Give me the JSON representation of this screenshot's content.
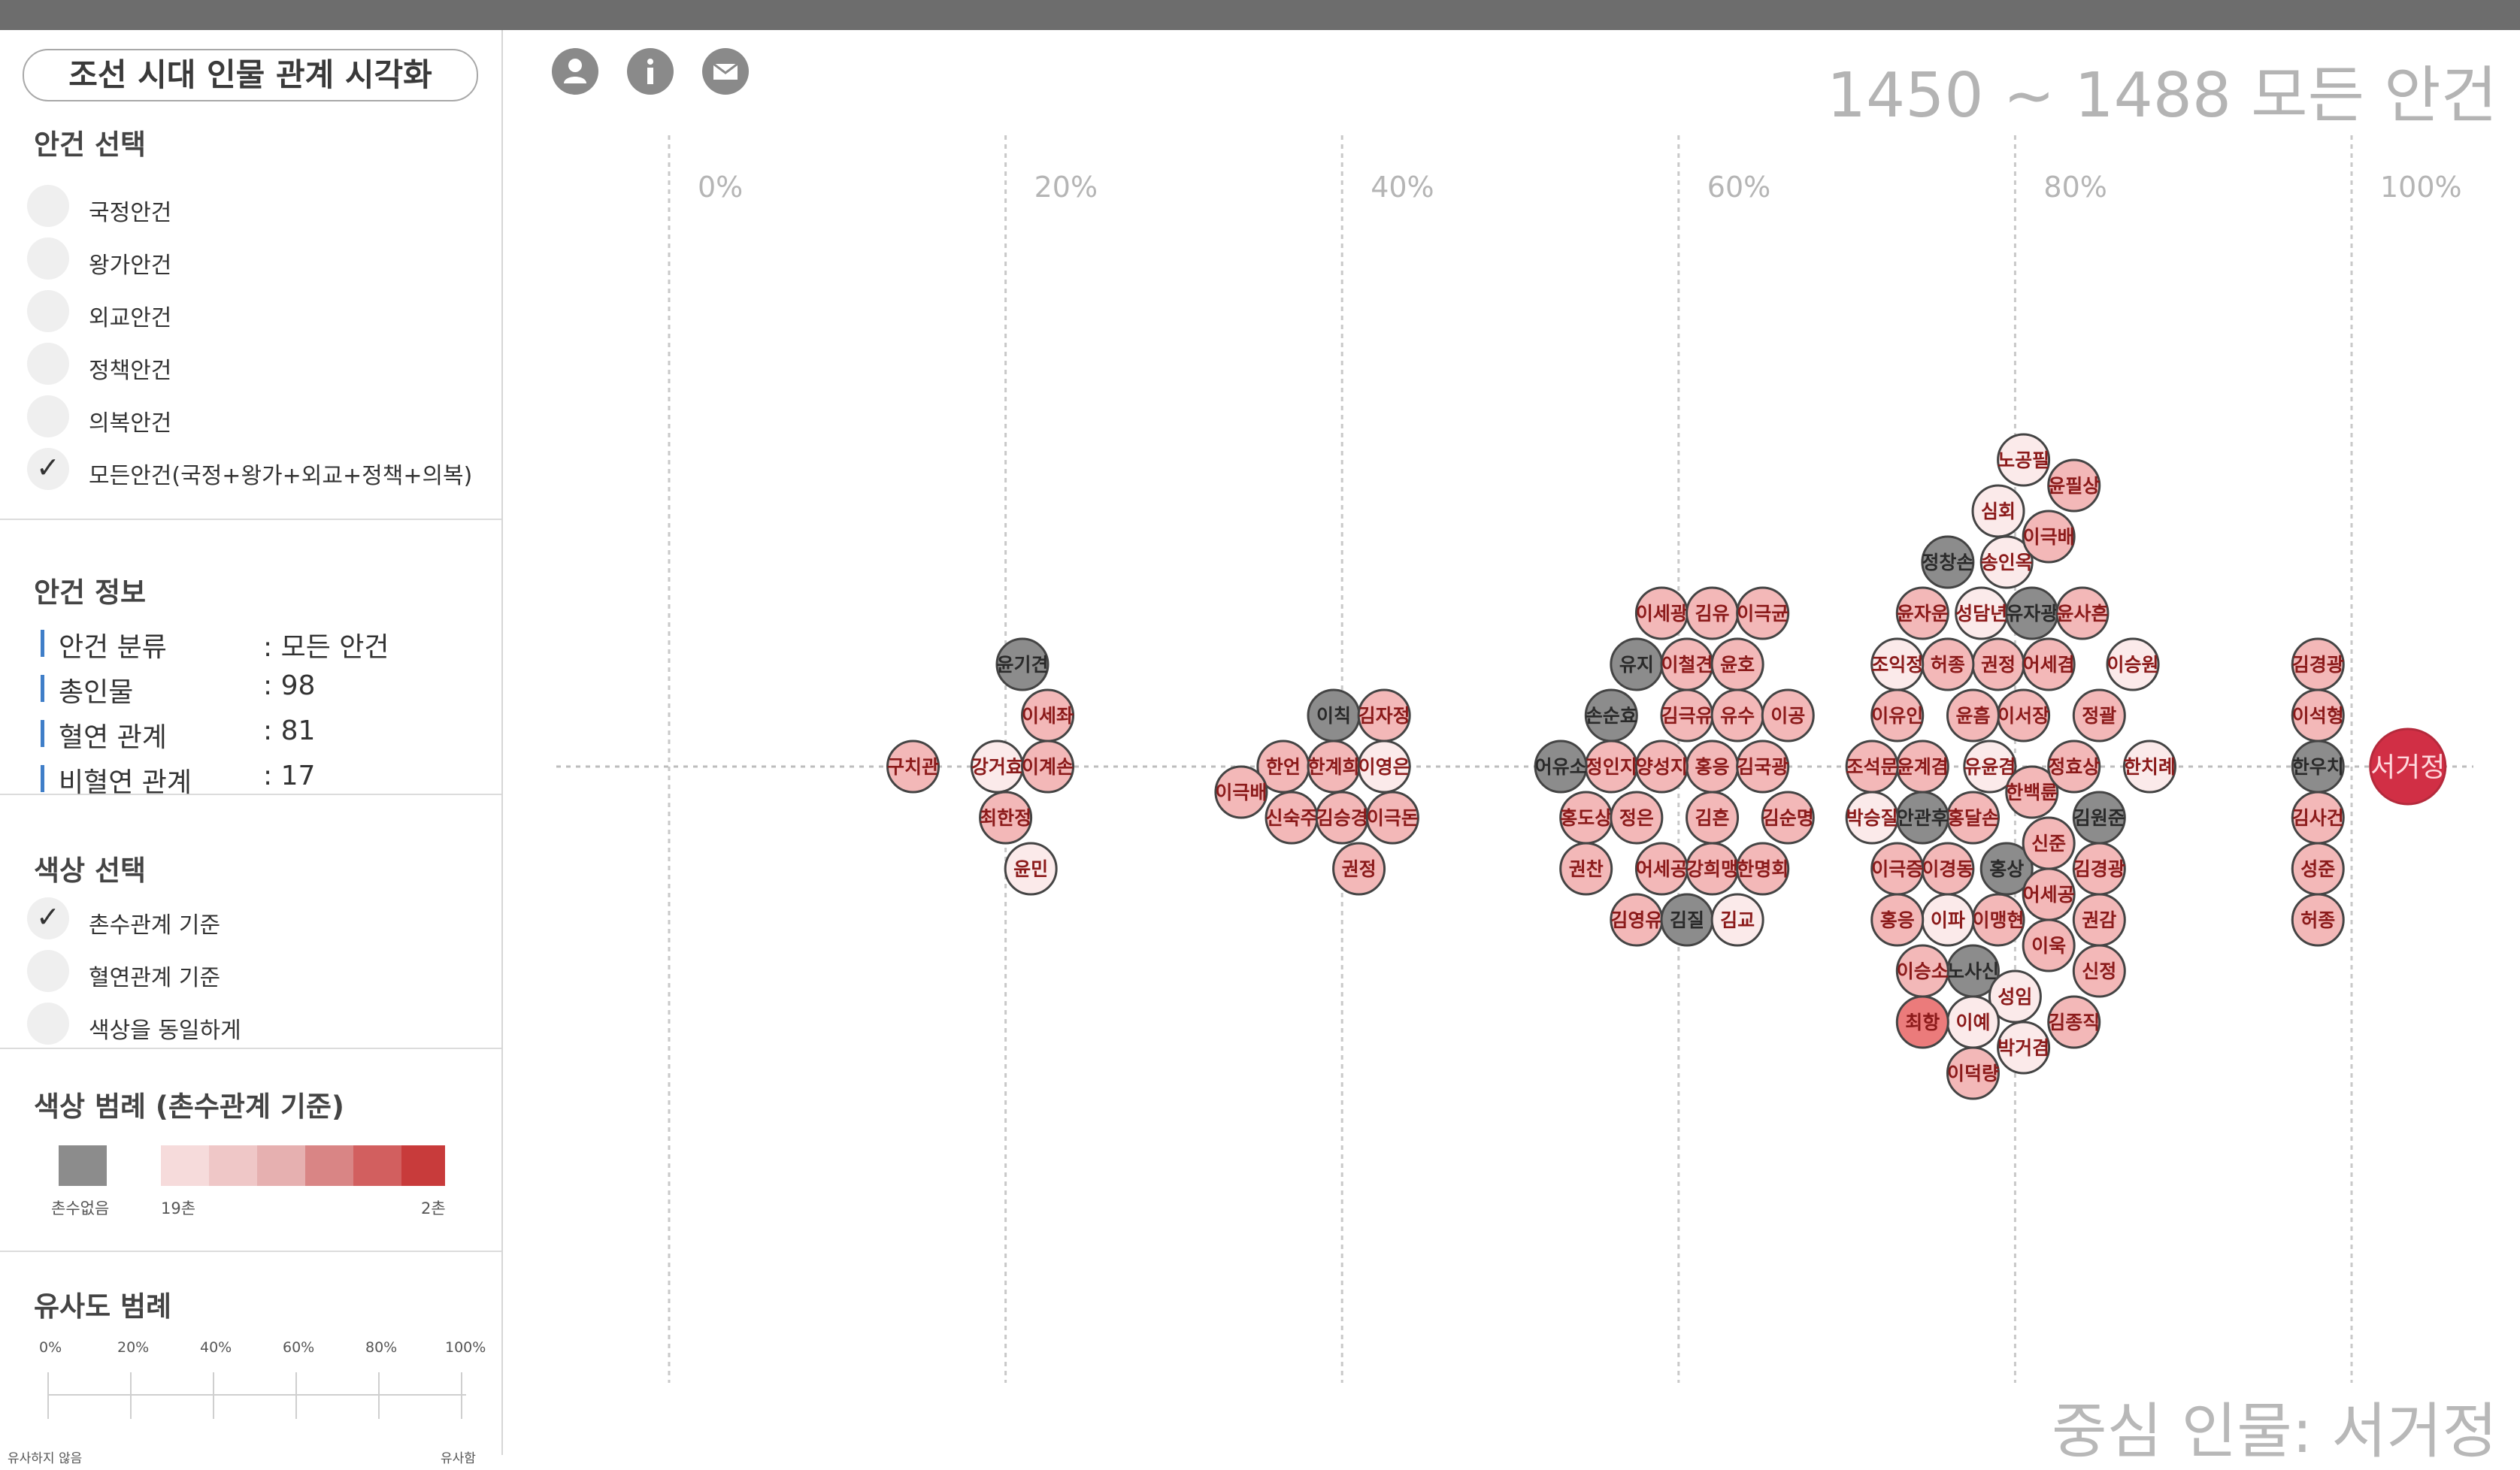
{
  "app_title": "조선 시대 인물 관계 시각화",
  "header_icons": [
    {
      "name": "user-icon"
    },
    {
      "name": "info-icon"
    },
    {
      "name": "mail-icon"
    }
  ],
  "issue_select": {
    "title": "안건 선택",
    "options": [
      {
        "label": "국정안건",
        "checked": false
      },
      {
        "label": "왕가안건",
        "checked": false
      },
      {
        "label": "외교안건",
        "checked": false
      },
      {
        "label": "정책안건",
        "checked": false
      },
      {
        "label": "의복안건",
        "checked": false
      },
      {
        "label": "모든안건(국정+왕가+외교+정책+의복)",
        "checked": true
      }
    ]
  },
  "issue_info": {
    "title": "안건 정보",
    "rows": [
      {
        "key": "안건 분류",
        "value": ": 모든 안건"
      },
      {
        "key": "총인물",
        "value": ": 98"
      },
      {
        "key": "혈연 관계",
        "value": ": 81"
      },
      {
        "key": "비혈연 관계",
        "value": ": 17"
      }
    ]
  },
  "color_select": {
    "title": "색상 선택",
    "options": [
      {
        "label": "촌수관계 기준",
        "checked": true
      },
      {
        "label": "혈연관계 기준",
        "checked": false
      },
      {
        "label": "색상을 동일하게",
        "checked": false
      }
    ]
  },
  "color_legend": {
    "title": "색상 범례 (촌수관계 기준)",
    "none_label": "촌수없음",
    "min_label": "19촌",
    "max_label": "2촌",
    "none_color": "#8c8c8c",
    "scale_colors": [
      "#f6dbdb",
      "#efc7c7",
      "#e6b0b0",
      "#d98585",
      "#d25f5f",
      "#c83b3b"
    ]
  },
  "similarity_legend": {
    "title": "유사도 범례",
    "ticks": [
      "0%",
      "20%",
      "40%",
      "60%",
      "80%",
      "100%"
    ],
    "left_label": "유사하지 않음",
    "right_label": "유사함"
  },
  "chart_title": "1450 ~ 1488 모든 안건",
  "center_person": "중심 인물: 서거정",
  "colors": {
    "none": "#8c8c8c",
    "deg_light": "#fbeaea",
    "deg_mid": "#f3b8b8",
    "deg_strong": "#eb7b7b",
    "center": "#d12f45",
    "label_red": "#8b1a1a"
  },
  "chart_data": {
    "type": "scatter",
    "x_axis_ticks": [
      "0%",
      "20%",
      "40%",
      "60%",
      "80%",
      "100%"
    ],
    "xlim": [
      0,
      100
    ],
    "center": {
      "name": "서거정",
      "similarity": 102
    },
    "people": [
      {
        "name": "구치관",
        "similarity": 14.5,
        "degree": "mid"
      },
      {
        "name": "강거효",
        "similarity": 19.5,
        "degree": "light"
      },
      {
        "name": "최한정",
        "similarity": 20.0,
        "degree": "mid"
      },
      {
        "name": "이계손",
        "similarity": 22.5,
        "degree": "mid"
      },
      {
        "name": "이세좌",
        "similarity": 22.5,
        "degree": "mid"
      },
      {
        "name": "윤민",
        "similarity": 21.5,
        "degree": "light"
      },
      {
        "name": "윤기견",
        "similarity": 21.0,
        "degree": "none"
      },
      {
        "name": "한언",
        "similarity": 36.5,
        "degree": "mid"
      },
      {
        "name": "한계희",
        "similarity": 39.5,
        "degree": "mid"
      },
      {
        "name": "이영은",
        "similarity": 42.5,
        "degree": "light"
      },
      {
        "name": "이극배",
        "similarity": 34.0,
        "degree": "mid"
      },
      {
        "name": "신숙주",
        "similarity": 37.0,
        "degree": "mid"
      },
      {
        "name": "김승경",
        "similarity": 40.0,
        "degree": "mid"
      },
      {
        "name": "이극돈",
        "similarity": 43.0,
        "degree": "mid"
      },
      {
        "name": "이칙",
        "similarity": 39.5,
        "degree": "none"
      },
      {
        "name": "김자정",
        "similarity": 42.5,
        "degree": "mid"
      },
      {
        "name": "권정",
        "similarity": 41.0,
        "degree": "mid"
      },
      {
        "name": "홍응",
        "similarity": 62.0,
        "degree": "mid"
      },
      {
        "name": "김국광",
        "similarity": 65.0,
        "degree": "mid"
      },
      {
        "name": "정인지",
        "similarity": 56.0,
        "degree": "mid"
      },
      {
        "name": "양성지",
        "similarity": 59.0,
        "degree": "mid"
      },
      {
        "name": "김흔",
        "similarity": 62.0,
        "degree": "mid"
      },
      {
        "name": "홍도상",
        "similarity": 54.5,
        "degree": "mid"
      },
      {
        "name": "정은",
        "similarity": 57.5,
        "degree": "mid"
      },
      {
        "name": "김극유",
        "similarity": 60.5,
        "degree": "mid"
      },
      {
        "name": "유수",
        "similarity": 63.5,
        "degree": "mid"
      },
      {
        "name": "김순명",
        "similarity": 66.5,
        "degree": "mid"
      },
      {
        "name": "어유소",
        "similarity": 53.0,
        "degree": "none"
      },
      {
        "name": "손순효",
        "similarity": 56.0,
        "degree": "none"
      },
      {
        "name": "어세공",
        "similarity": 59.0,
        "degree": "mid"
      },
      {
        "name": "강희맹",
        "similarity": 62.0,
        "degree": "mid"
      },
      {
        "name": "한명회",
        "similarity": 65.0,
        "degree": "mid"
      },
      {
        "name": "권찬",
        "similarity": 54.5,
        "degree": "mid"
      },
      {
        "name": "유지",
        "similarity": 57.5,
        "degree": "none"
      },
      {
        "name": "이철견",
        "similarity": 60.5,
        "degree": "mid"
      },
      {
        "name": "윤호",
        "similarity": 63.5,
        "degree": "mid"
      },
      {
        "name": "이공",
        "similarity": 66.5,
        "degree": "mid"
      },
      {
        "name": "김영유",
        "similarity": 57.5,
        "degree": "mid"
      },
      {
        "name": "김질",
        "similarity": 60.5,
        "degree": "none"
      },
      {
        "name": "김교",
        "similarity": 63.5,
        "degree": "light"
      },
      {
        "name": "이세광",
        "similarity": 59.0,
        "degree": "mid"
      },
      {
        "name": "김유",
        "similarity": 62.0,
        "degree": "mid"
      },
      {
        "name": "이극균",
        "similarity": 65.0,
        "degree": "mid"
      },
      {
        "name": "유윤겸",
        "similarity": 78.5,
        "degree": "light"
      },
      {
        "name": "한백륜",
        "similarity": 81.0,
        "degree": "mid"
      },
      {
        "name": "윤계겸",
        "similarity": 74.5,
        "degree": "mid"
      },
      {
        "name": "홍달손",
        "similarity": 77.5,
        "degree": "mid"
      },
      {
        "name": "이서장",
        "similarity": 80.5,
        "degree": "mid"
      },
      {
        "name": "정효상",
        "similarity": 83.5,
        "degree": "mid"
      },
      {
        "name": "조석문",
        "similarity": 71.5,
        "degree": "mid"
      },
      {
        "name": "안관후",
        "similarity": 74.5,
        "degree": "none"
      },
      {
        "name": "윤흠",
        "similarity": 77.5,
        "degree": "mid"
      },
      {
        "name": "홍상",
        "similarity": 79.5,
        "degree": "none"
      },
      {
        "name": "신준",
        "similarity": 82.0,
        "degree": "mid"
      },
      {
        "name": "김원준",
        "similarity": 85.0,
        "degree": "none"
      },
      {
        "name": "이유인",
        "similarity": 73.0,
        "degree": "mid"
      },
      {
        "name": "이경동",
        "similarity": 76.0,
        "degree": "mid"
      },
      {
        "name": "권정",
        "similarity": 79.0,
        "degree": "mid"
      },
      {
        "name": "어세겸",
        "similarity": 82.0,
        "degree": "mid"
      },
      {
        "name": "정괄",
        "similarity": 85.0,
        "degree": "mid"
      },
      {
        "name": "이극증",
        "similarity": 73.0,
        "degree": "mid"
      },
      {
        "name": "허종",
        "similarity": 76.0,
        "degree": "mid"
      },
      {
        "name": "이맹현",
        "similarity": 79.0,
        "degree": "mid"
      },
      {
        "name": "어세공",
        "similarity": 82.0,
        "degree": "mid"
      },
      {
        "name": "김경광",
        "similarity": 85.0,
        "degree": "mid"
      },
      {
        "name": "한치례",
        "similarity": 88.0,
        "degree": "light"
      },
      {
        "name": "조익정",
        "similarity": 73.0,
        "degree": "light"
      },
      {
        "name": "이파",
        "similarity": 76.0,
        "degree": "light"
      },
      {
        "name": "성담년",
        "similarity": 78.0,
        "degree": "light"
      },
      {
        "name": "유자광",
        "similarity": 81.0,
        "degree": "none"
      },
      {
        "name": "윤사흔",
        "similarity": 84.0,
        "degree": "mid"
      },
      {
        "name": "이승원",
        "similarity": 87.0,
        "degree": "light"
      },
      {
        "name": "윤자운",
        "similarity": 74.5,
        "degree": "mid"
      },
      {
        "name": "노사신",
        "similarity": 77.5,
        "degree": "none"
      },
      {
        "name": "송인옥",
        "similarity": 79.5,
        "degree": "light"
      },
      {
        "name": "이욱",
        "similarity": 82.0,
        "degree": "mid"
      },
      {
        "name": "권감",
        "similarity": 85.0,
        "degree": "mid"
      },
      {
        "name": "성임",
        "similarity": 80.0,
        "degree": "light"
      },
      {
        "name": "홍응",
        "similarity": 73.0,
        "degree": "mid"
      },
      {
        "name": "정창손",
        "similarity": 76.0,
        "degree": "none"
      },
      {
        "name": "심회",
        "similarity": 79.0,
        "degree": "light"
      },
      {
        "name": "이극배",
        "similarity": 82.0,
        "degree": "mid"
      },
      {
        "name": "신정",
        "similarity": 85.0,
        "degree": "mid"
      },
      {
        "name": "박승질",
        "similarity": 71.5,
        "degree": "light"
      },
      {
        "name": "이승소",
        "similarity": 74.5,
        "degree": "mid"
      },
      {
        "name": "이예",
        "similarity": 77.5,
        "degree": "light"
      },
      {
        "name": "박거겸",
        "similarity": 80.5,
        "degree": "light"
      },
      {
        "name": "김종직",
        "similarity": 83.5,
        "degree": "mid"
      },
      {
        "name": "최항",
        "similarity": 74.5,
        "degree": "strong"
      },
      {
        "name": "이덕량",
        "similarity": 77.5,
        "degree": "mid"
      },
      {
        "name": "노공필",
        "similarity": 80.5,
        "degree": "light"
      },
      {
        "name": "윤필상",
        "similarity": 83.5,
        "degree": "mid"
      },
      {
        "name": "한우치",
        "similarity": 98.0,
        "degree": "none"
      },
      {
        "name": "김사건",
        "similarity": 98.0,
        "degree": "mid"
      },
      {
        "name": "이석형",
        "similarity": 98.0,
        "degree": "mid"
      },
      {
        "name": "성준",
        "similarity": 98.0,
        "degree": "mid"
      },
      {
        "name": "김경광",
        "similarity": 98.0,
        "degree": "mid"
      },
      {
        "name": "허종",
        "similarity": 98.0,
        "degree": "mid"
      }
    ]
  }
}
